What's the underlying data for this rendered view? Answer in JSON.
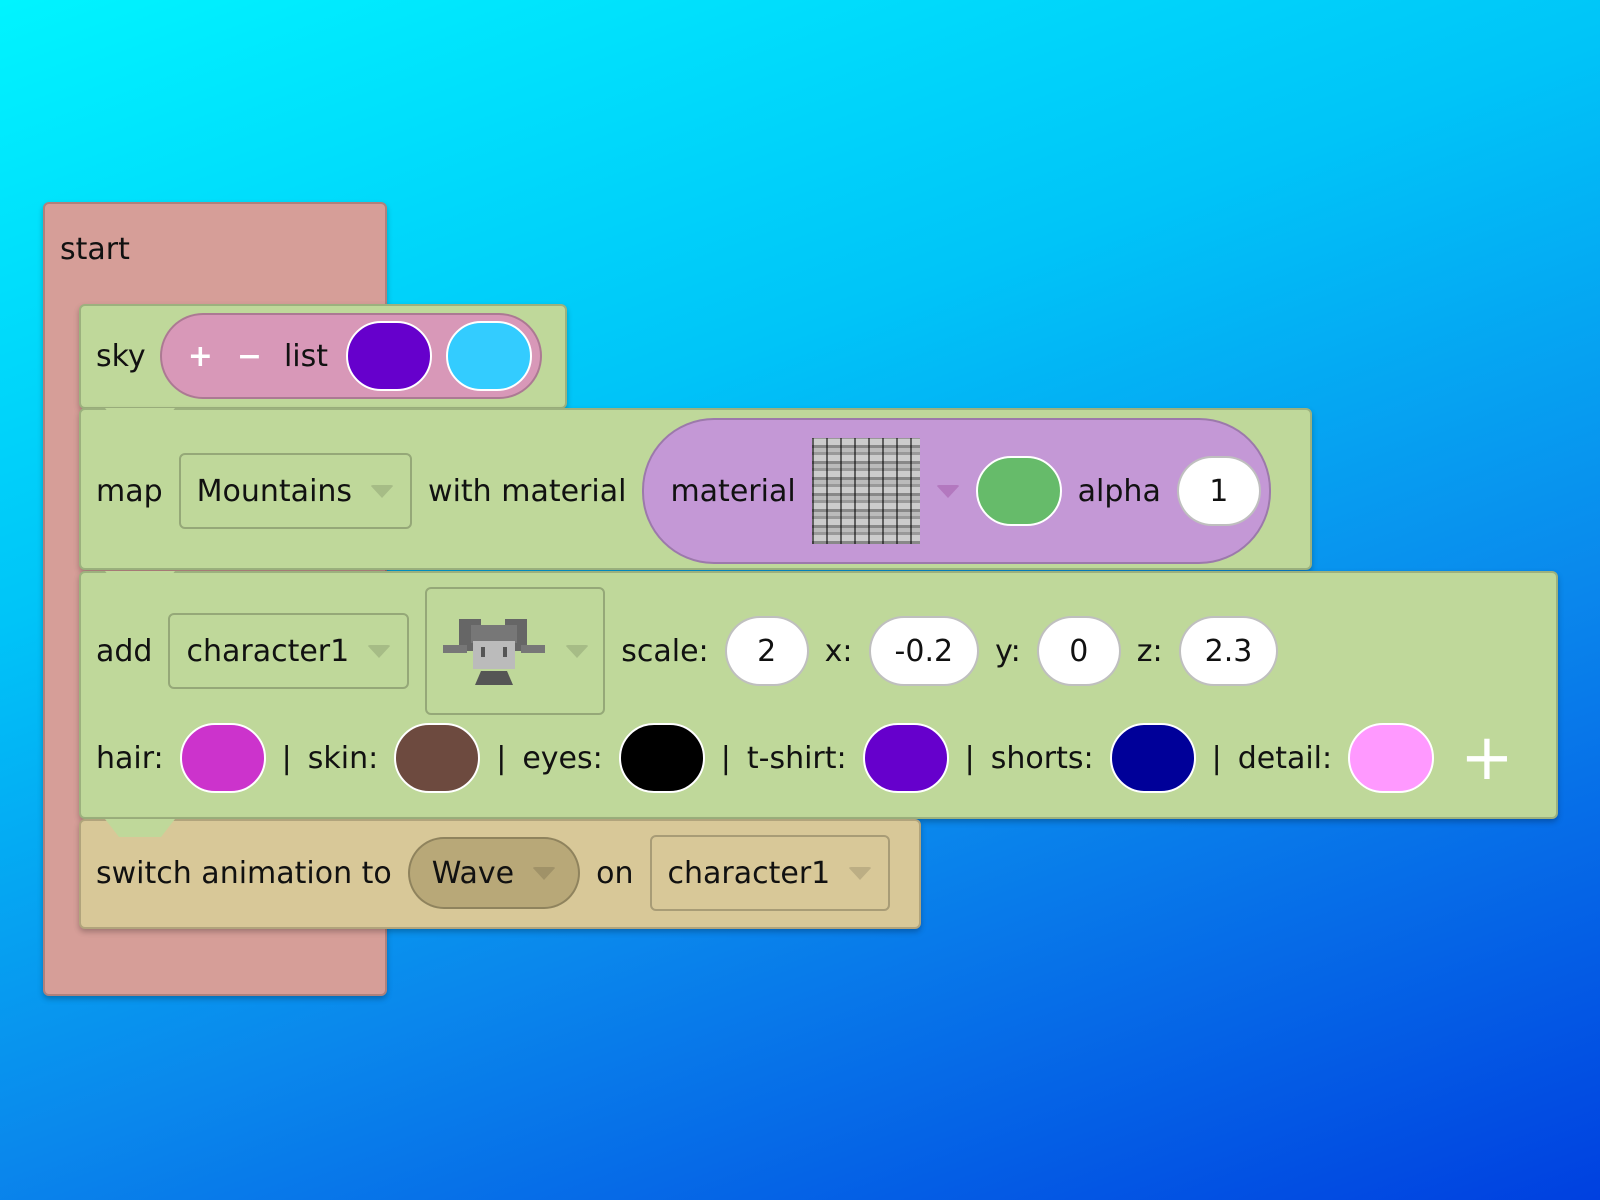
{
  "start": {
    "label": "start"
  },
  "sky": {
    "label": "sky",
    "plus": "+",
    "minus": "−",
    "list_label": "list",
    "colors": [
      "#6600cc",
      "#33ccff"
    ]
  },
  "map": {
    "label": "map",
    "map_value": "Mountains",
    "with_label": "with material",
    "material_label": "material",
    "material_color": "#66bb6a",
    "alpha_label": "alpha",
    "alpha_value": "1"
  },
  "add": {
    "label": "add",
    "character_value": "character1",
    "model_icon": "character-model-icon",
    "scale_label": "scale:",
    "scale": "2",
    "x_label": "x:",
    "x": "-0.2",
    "y_label": "y:",
    "y": "0",
    "z_label": "z:",
    "z": "2.3",
    "colors": [
      {
        "label": "hair:",
        "color": "#cc33cc"
      },
      {
        "label": "skin:",
        "color": "#6d4a3f"
      },
      {
        "label": "eyes:",
        "color": "#000000"
      },
      {
        "label": "t-shirt:",
        "color": "#6600cc"
      },
      {
        "label": "shorts:",
        "color": "#000099"
      },
      {
        "label": "detail:",
        "color": "#ff99ff"
      }
    ],
    "separator": "|",
    "plus": "+"
  },
  "switch": {
    "label": "switch animation to",
    "animation": "Wave",
    "on_label": "on",
    "target": "character1"
  }
}
